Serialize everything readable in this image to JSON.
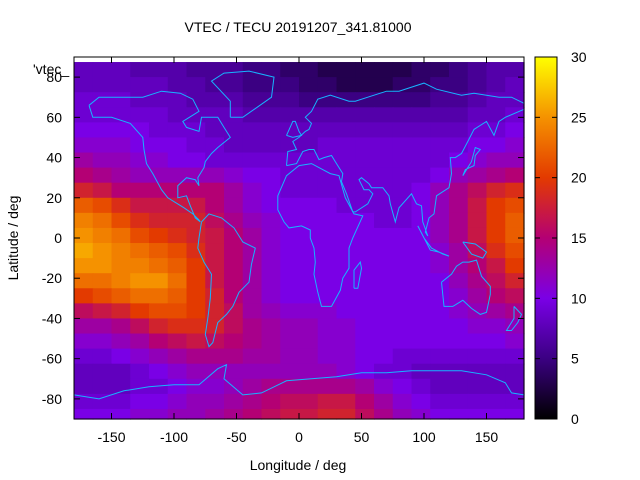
{
  "chart_data": {
    "type": "heatmap",
    "title": "VTEC / TECU 20191207_341.81000",
    "xlabel": "Longitude / deg",
    "ylabel": "Latitude / deg",
    "key_label": "'vtec_",
    "xlim": [
      -180,
      180
    ],
    "ylim": [
      -90,
      90
    ],
    "x_ticks": [
      "-150",
      "-100",
      "-50",
      "0",
      "50",
      "100",
      "150"
    ],
    "x_tick_values": [
      -150,
      -100,
      -50,
      0,
      50,
      100,
      150
    ],
    "y_ticks": [
      "-80",
      "-60",
      "-40",
      "-20",
      "0",
      "20",
      "40",
      "60",
      "80"
    ],
    "y_tick_values": [
      -80,
      -60,
      -40,
      -20,
      0,
      20,
      40,
      60,
      80
    ],
    "colorbar": {
      "range": [
        0,
        30
      ],
      "ticks": [
        "0",
        "5",
        "10",
        "15",
        "20",
        "25",
        "30"
      ],
      "tick_values": [
        0,
        5,
        10,
        15,
        20,
        25,
        30
      ],
      "palette": [
        "#000000",
        "#3b0082",
        "#7a00e6",
        "#b40074",
        "#e33a00",
        "#f59200",
        "#ffff00"
      ]
    },
    "coastline_color": "#17b4ff",
    "lon": [
      -180,
      -165,
      -150,
      -135,
      -120,
      -105,
      -90,
      -75,
      -60,
      -45,
      -30,
      -15,
      0,
      15,
      30,
      45,
      60,
      75,
      90,
      105,
      120,
      135,
      150,
      165,
      180
    ],
    "lat": [
      87.5,
      80,
      72.5,
      65,
      57.5,
      50,
      42.5,
      35,
      27.5,
      20,
      12.5,
      5,
      -2.5,
      -10,
      -17.5,
      -25,
      -32.5,
      -40,
      -47.5,
      -55,
      -62.5,
      -70,
      -77.5,
      -85,
      -90
    ],
    "vtec": [
      [
        8,
        8,
        8,
        7,
        7,
        7,
        6,
        6,
        6,
        5,
        5,
        4,
        4,
        3,
        3,
        3,
        3,
        3,
        4,
        4,
        5,
        6,
        7,
        7
      ],
      [
        8,
        8,
        8,
        8,
        8,
        7,
        7,
        6,
        6,
        5,
        5,
        5,
        4,
        4,
        3,
        3,
        3,
        4,
        4,
        5,
        5,
        6,
        7,
        8
      ],
      [
        9,
        9,
        9,
        8,
        8,
        8,
        7,
        7,
        7,
        6,
        6,
        6,
        5,
        5,
        5,
        5,
        5,
        5,
        5,
        6,
        6,
        7,
        8,
        8
      ],
      [
        9,
        9,
        9,
        9,
        9,
        8,
        8,
        8,
        8,
        7,
        7,
        7,
        7,
        7,
        7,
        7,
        7,
        7,
        7,
        7,
        7,
        8,
        8,
        9
      ],
      [
        10,
        10,
        10,
        10,
        9,
        9,
        9,
        8,
        8,
        8,
        8,
        8,
        8,
        8,
        8,
        8,
        8,
        8,
        8,
        8,
        8,
        9,
        9,
        10
      ],
      [
        11,
        11,
        11,
        10,
        10,
        10,
        9,
        9,
        8,
        8,
        8,
        8,
        8,
        9,
        9,
        9,
        9,
        9,
        9,
        9,
        9,
        10,
        10,
        11
      ],
      [
        13,
        12,
        12,
        11,
        11,
        10,
        10,
        9,
        9,
        9,
        9,
        9,
        9,
        9,
        9,
        9,
        9,
        9,
        9,
        9,
        10,
        11,
        12,
        12
      ],
      [
        15,
        14,
        13,
        12,
        12,
        12,
        12,
        12,
        11,
        10,
        10,
        9,
        9,
        9,
        9,
        9,
        9,
        9,
        9,
        10,
        12,
        13,
        14,
        15
      ],
      [
        18,
        17,
        15,
        15,
        15,
        15,
        15,
        15,
        13,
        11,
        10,
        9,
        9,
        9,
        9,
        9,
        9,
        9,
        10,
        12,
        14,
        16,
        18,
        19
      ],
      [
        22,
        21,
        19,
        17,
        17,
        17,
        17,
        15,
        13,
        11,
        10,
        10,
        10,
        10,
        9,
        9,
        9,
        9,
        10,
        12,
        14,
        17,
        20,
        21
      ],
      [
        24,
        23,
        21,
        19,
        18,
        18,
        18,
        16,
        14,
        12,
        11,
        10,
        10,
        10,
        10,
        10,
        9,
        9,
        10,
        12,
        14,
        17,
        20,
        22
      ],
      [
        25,
        24,
        23,
        21,
        20,
        19,
        18,
        17,
        15,
        13,
        11,
        10,
        10,
        10,
        10,
        10,
        10,
        10,
        10,
        12,
        14,
        17,
        20,
        22
      ],
      [
        26,
        25,
        24,
        23,
        22,
        21,
        19,
        17,
        15,
        13,
        11,
        10,
        10,
        10,
        10,
        10,
        10,
        10,
        10,
        11,
        13,
        16,
        19,
        21
      ],
      [
        25,
        25,
        24,
        24,
        23,
        22,
        20,
        17,
        15,
        13,
        11,
        10,
        10,
        10,
        10,
        10,
        10,
        10,
        10,
        11,
        13,
        15,
        17,
        20
      ],
      [
        23,
        23,
        24,
        25,
        25,
        23,
        20,
        17,
        15,
        13,
        11,
        10,
        10,
        10,
        10,
        10,
        10,
        10,
        10,
        10,
        12,
        14,
        16,
        18
      ],
      [
        20,
        21,
        22,
        23,
        23,
        22,
        20,
        18,
        15,
        13,
        11,
        10,
        10,
        10,
        10,
        10,
        10,
        10,
        10,
        10,
        11,
        13,
        15,
        16
      ],
      [
        16,
        17,
        18,
        20,
        21,
        21,
        20,
        18,
        16,
        13,
        12,
        11,
        11,
        11,
        10,
        10,
        10,
        10,
        10,
        10,
        11,
        12,
        13,
        14
      ],
      [
        13,
        13,
        14,
        16,
        18,
        19,
        19,
        18,
        16,
        14,
        13,
        12,
        12,
        11,
        11,
        10,
        10,
        10,
        10,
        10,
        10,
        11,
        11,
        12
      ],
      [
        11,
        11,
        12,
        13,
        15,
        16,
        17,
        16,
        15,
        14,
        13,
        12,
        12,
        11,
        11,
        10,
        10,
        10,
        10,
        10,
        10,
        10,
        10,
        11
      ],
      [
        9,
        9,
        10,
        11,
        12,
        13,
        14,
        14,
        14,
        13,
        13,
        12,
        12,
        11,
        11,
        10,
        10,
        9,
        9,
        9,
        9,
        9,
        9,
        9
      ],
      [
        8,
        8,
        8,
        9,
        10,
        11,
        12,
        12,
        12,
        12,
        12,
        12,
        12,
        12,
        11,
        10,
        9,
        9,
        8,
        8,
        8,
        8,
        8,
        8
      ],
      [
        8,
        8,
        8,
        9,
        9,
        10,
        11,
        11,
        12,
        13,
        14,
        14,
        14,
        14,
        14,
        13,
        11,
        10,
        9,
        8,
        8,
        8,
        8,
        8
      ],
      [
        9,
        9,
        9,
        10,
        10,
        11,
        12,
        12,
        13,
        14,
        15,
        16,
        16,
        17,
        17,
        15,
        13,
        11,
        10,
        9,
        9,
        9,
        9,
        9
      ],
      [
        10,
        10,
        10,
        11,
        11,
        12,
        12,
        13,
        14,
        15,
        16,
        17,
        17,
        18,
        18,
        16,
        14,
        12,
        11,
        10,
        10,
        10,
        10,
        10
      ]
    ]
  }
}
